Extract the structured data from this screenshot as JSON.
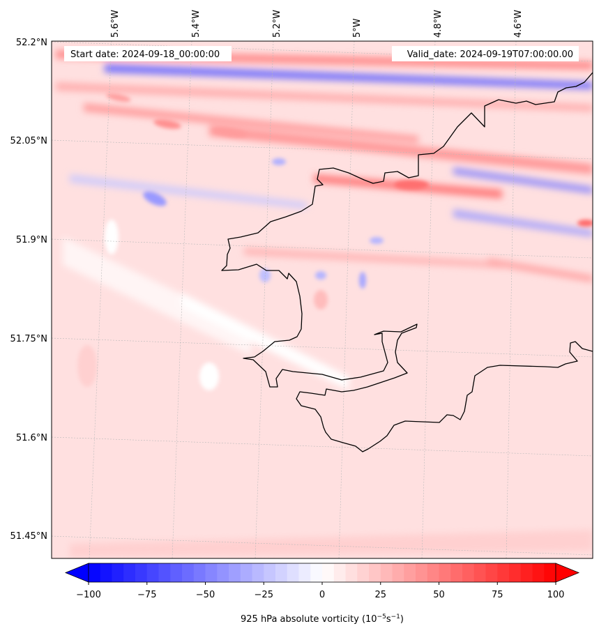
{
  "header": {
    "start_date": "Start date: 2024-09-18_00:00:00",
    "valid_date": "Valid_date: 2024-09-19T07:00:00.00"
  },
  "lon_labels": [
    "5.6°W",
    "5.4°W",
    "5.2°W",
    "5°W",
    "4.8°W",
    "4.6°W"
  ],
  "lat_labels": [
    "52.2°N",
    "52.05°N",
    "51.9°N",
    "51.75°N",
    "51.6°N",
    "51.45°N"
  ],
  "colorbar": {
    "ticks": [
      "−100",
      "−75",
      "−50",
      "−25",
      "0",
      "25",
      "50",
      "75",
      "100"
    ],
    "tick_values": [
      -100,
      -75,
      -50,
      -25,
      0,
      25,
      50,
      75,
      100
    ],
    "range": [
      -100,
      100
    ],
    "extend": "both",
    "low_color": "#0000ff",
    "mid_color": "#ffffff",
    "high_color": "#ff0000",
    "label": "925 hPa absolute vorticity (10",
    "label_exp1": "−5",
    "label_mid": "s",
    "label_exp2": "−1",
    "label_end": ")"
  },
  "chart_data": {
    "type": "heatmap",
    "variable": "925 hPa absolute vorticity",
    "units": "10^-5 s^-1",
    "colormap": "bwr",
    "vmin": -100,
    "vmax": 100,
    "lon_ticks": [
      -5.6,
      -5.4,
      -5.2,
      -5.0,
      -4.8,
      -4.6
    ],
    "lat_ticks": [
      52.2,
      52.05,
      51.9,
      51.75,
      51.6,
      51.45
    ],
    "gridlines": true,
    "coastline": true
  }
}
